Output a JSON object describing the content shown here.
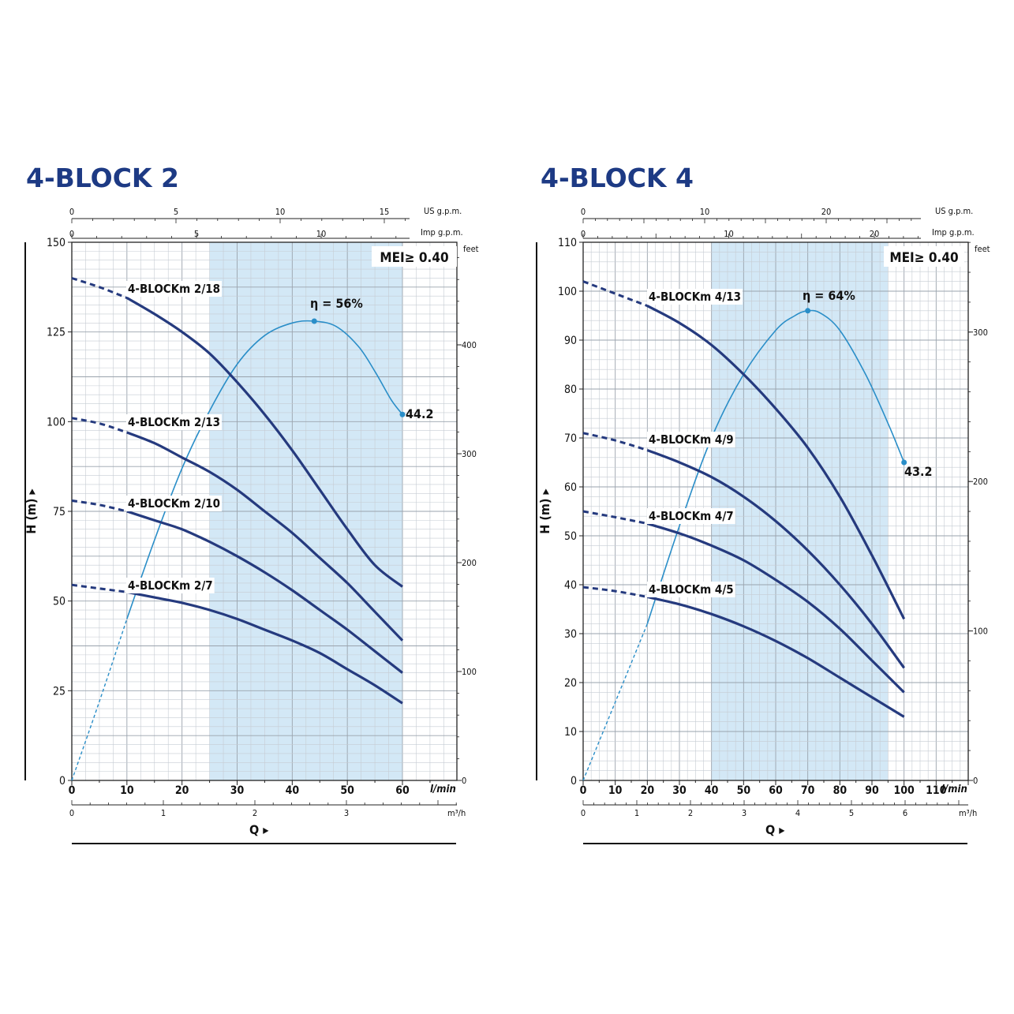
{
  "chart_data": [
    {
      "type": "line",
      "title": "4-BLOCK 2",
      "ylabel": "H (m)",
      "xlabel": "Q",
      "x_unit": "l/min",
      "xlim": [
        0,
        70
      ],
      "ylim": [
        0,
        150
      ],
      "x_ticks": [
        0,
        10,
        20,
        30,
        40,
        50,
        60
      ],
      "y_ticks": [
        0,
        25,
        50,
        75,
        100,
        125,
        150
      ],
      "y2_unit": "feet",
      "y2_ticks": [
        0,
        100,
        200,
        300,
        400
      ],
      "m3h_ticks": [
        0,
        1,
        2,
        3
      ],
      "m3h_unit": "m³/h",
      "usgpm_ticks": [
        0,
        5,
        10,
        15
      ],
      "usgpm_unit": "US g.p.m.",
      "impgpm_ticks": [
        0,
        5,
        10
      ],
      "impgpm_unit": "Imp g.p.m.",
      "mei_label": "MEI≥ 0.40",
      "operating_range": [
        25,
        60
      ],
      "series": [
        {
          "name": "4-BLOCKm 2/18",
          "dashed_x": [
            0,
            5,
            10
          ],
          "dashed_y": [
            140,
            137.5,
            134.5
          ],
          "x": [
            10,
            15,
            20,
            25,
            30,
            35,
            40,
            45,
            50,
            55,
            60
          ],
          "y": [
            134.5,
            130,
            125,
            119,
            111,
            102,
            92,
            81,
            70,
            60,
            54
          ]
        },
        {
          "name": "4-BLOCKm 2/13",
          "dashed_x": [
            0,
            5,
            10
          ],
          "dashed_y": [
            101,
            99.5,
            97
          ],
          "x": [
            10,
            15,
            20,
            25,
            30,
            35,
            40,
            45,
            50,
            55,
            60
          ],
          "y": [
            97,
            94,
            90,
            86,
            81,
            75,
            69,
            62,
            55,
            47,
            39
          ]
        },
        {
          "name": "4-BLOCKm 2/10",
          "dashed_x": [
            0,
            5,
            10
          ],
          "dashed_y": [
            78,
            76.8,
            75
          ],
          "x": [
            10,
            15,
            20,
            25,
            30,
            35,
            40,
            45,
            50,
            55,
            60
          ],
          "y": [
            75,
            72.5,
            70,
            66.5,
            62.5,
            58,
            53,
            47.5,
            42,
            36,
            30
          ]
        },
        {
          "name": "4-BLOCKm 2/7",
          "dashed_x": [
            0,
            5,
            10
          ],
          "dashed_y": [
            54.5,
            53.5,
            52.5
          ],
          "x": [
            10,
            15,
            20,
            25,
            30,
            35,
            40,
            45,
            50,
            55,
            60
          ],
          "y": [
            52.5,
            51,
            49.5,
            47.5,
            45,
            42,
            39,
            35.5,
            31,
            26.5,
            21.5
          ]
        }
      ],
      "efficiency": {
        "dashed_x": [
          0,
          5,
          10
        ],
        "dashed_y": [
          0,
          22,
          45
        ],
        "x": [
          10,
          15,
          20,
          25,
          30,
          35,
          40,
          44,
          48,
          52,
          55,
          58,
          60
        ],
        "y": [
          45,
          67,
          87,
          103,
          116,
          124,
          127.5,
          128,
          126.5,
          121,
          114,
          106,
          102
        ],
        "peak": {
          "x": 44,
          "y": 128,
          "label": "η = 56%"
        },
        "end": {
          "x": 60,
          "y": 102,
          "label": "44.2"
        }
      }
    },
    {
      "type": "line",
      "title": "4-BLOCK 4",
      "ylabel": "H (m)",
      "xlabel": "Q",
      "x_unit": "l/min",
      "xlim": [
        0,
        120
      ],
      "ylim": [
        0,
        110
      ],
      "x_ticks": [
        0,
        10,
        20,
        30,
        40,
        50,
        60,
        70,
        80,
        90,
        100,
        110
      ],
      "y_ticks": [
        0,
        10,
        20,
        30,
        40,
        50,
        60,
        70,
        80,
        90,
        100,
        110
      ],
      "y2_unit": "feet",
      "y2_ticks": [
        0,
        100,
        200,
        300
      ],
      "m3h_ticks": [
        0,
        1,
        2,
        3,
        4,
        5,
        6
      ],
      "m3h_unit": "m³/h",
      "usgpm_ticks": [
        0,
        10,
        20
      ],
      "usgpm_unit": "US g.p.m.",
      "impgpm_ticks": [
        0,
        10,
        20
      ],
      "impgpm_unit": "Imp g.p.m.",
      "mei_label": "MEI≥ 0.40",
      "operating_range": [
        40,
        95
      ],
      "series": [
        {
          "name": "4-BLOCKm 4/13",
          "dashed_x": [
            0,
            10,
            20
          ],
          "dashed_y": [
            102,
            99.5,
            97
          ],
          "x": [
            20,
            30,
            40,
            50,
            60,
            70,
            80,
            90,
            100
          ],
          "y": [
            97,
            93.5,
            89,
            83,
            76,
            68,
            58,
            46,
            33
          ]
        },
        {
          "name": "4-BLOCKm 4/9",
          "dashed_x": [
            0,
            10,
            20
          ],
          "dashed_y": [
            71,
            69.5,
            67.5
          ],
          "x": [
            20,
            30,
            40,
            50,
            60,
            70,
            80,
            90,
            100
          ],
          "y": [
            67.5,
            65,
            62,
            58,
            53,
            47,
            40,
            32,
            23
          ]
        },
        {
          "name": "4-BLOCKm 4/7",
          "dashed_x": [
            0,
            10,
            20
          ],
          "dashed_y": [
            55,
            53.8,
            52.5
          ],
          "x": [
            20,
            30,
            40,
            50,
            60,
            70,
            80,
            90,
            100
          ],
          "y": [
            52.5,
            50.5,
            48,
            45,
            41,
            36.5,
            31,
            24.5,
            18
          ]
        },
        {
          "name": "4-BLOCKm 4/5",
          "dashed_x": [
            0,
            10,
            20
          ],
          "dashed_y": [
            39.5,
            38.7,
            37.5
          ],
          "x": [
            20,
            30,
            40,
            50,
            60,
            70,
            80,
            90,
            100
          ],
          "y": [
            37.5,
            36,
            34,
            31.5,
            28.5,
            25,
            21,
            17,
            13
          ]
        }
      ],
      "efficiency": {
        "dashed_x": [
          0,
          10,
          20
        ],
        "dashed_y": [
          0,
          16,
          32
        ],
        "x": [
          20,
          30,
          40,
          50,
          60,
          66,
          70,
          74,
          80,
          88,
          95,
          100
        ],
        "y": [
          32,
          52,
          70,
          83,
          92,
          95,
          96,
          95.5,
          92,
          83,
          73,
          65
        ],
        "peak": {
          "x": 70,
          "y": 96,
          "label": "η = 64%"
        },
        "end": {
          "x": 100,
          "y": 65,
          "label": "43.2"
        }
      }
    }
  ]
}
